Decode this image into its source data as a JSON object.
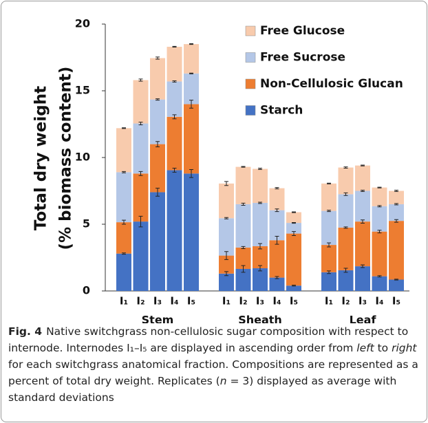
{
  "chart_data": {
    "type": "stacked-bar",
    "ylabel": [
      "Total dry weight",
      "(% biomass content)"
    ],
    "groups": [
      "Stem",
      "Sheath",
      "Leaf"
    ],
    "categories": [
      "I₁",
      "I₂",
      "I₃",
      "I₄",
      "I₅",
      "I₁",
      "I₂",
      "I₃",
      "I₄",
      "I₅",
      "I₁",
      "I₂",
      "I₃",
      "I₄",
      "I₅"
    ],
    "ylim": [
      0,
      20
    ],
    "yticks": [
      0,
      5,
      10,
      15,
      20
    ],
    "series": [
      {
        "name": "Starch",
        "color": "#4472c4",
        "values": [
          2.8,
          5.2,
          7.4,
          9.05,
          8.8,
          1.3,
          1.65,
          1.7,
          1.0,
          0.4,
          1.4,
          1.55,
          1.85,
          1.1,
          0.85
        ],
        "errors": [
          0.05,
          0.4,
          0.3,
          0.15,
          0.3,
          0.15,
          0.25,
          0.2,
          0.08,
          0.03,
          0.1,
          0.15,
          0.1,
          0.05,
          0.03
        ]
      },
      {
        "name": "Non-Cellulosic Glucan",
        "color": "#ed7d31",
        "values": [
          2.35,
          3.6,
          3.6,
          4.0,
          5.2,
          1.35,
          1.6,
          1.65,
          2.8,
          3.9,
          2.05,
          3.2,
          3.35,
          3.35,
          4.4
        ],
        "errors": [
          0.15,
          0.15,
          0.2,
          0.15,
          0.3,
          0.3,
          0.08,
          0.2,
          0.3,
          0.15,
          0.15,
          0.05,
          0.12,
          0.1,
          0.1
        ]
      },
      {
        "name": "Free Sucrose",
        "color": "#b4c7e7",
        "values": [
          3.75,
          3.75,
          3.35,
          2.65,
          2.3,
          2.8,
          3.25,
          3.25,
          2.25,
          0.8,
          2.55,
          2.5,
          2.3,
          1.9,
          1.25
        ],
        "errors": [
          0.05,
          0.1,
          0.05,
          0.05,
          0.03,
          0.05,
          0.08,
          0.05,
          0.1,
          0.03,
          0.05,
          0.1,
          0.05,
          0.05,
          0.05
        ]
      },
      {
        "name": "Free Glucose",
        "color": "#f8cbad",
        "values": [
          3.3,
          3.25,
          3.1,
          2.6,
          2.2,
          2.6,
          2.8,
          2.55,
          1.65,
          0.8,
          2.05,
          2.0,
          1.9,
          1.4,
          1.0
        ],
        "errors": [
          0.03,
          0.08,
          0.08,
          0.03,
          0.03,
          0.15,
          0.03,
          0.05,
          0.05,
          0.03,
          0.03,
          0.05,
          0.03,
          0.03,
          0.05
        ]
      }
    ]
  },
  "caption": {
    "label": "Fig. 4",
    "segments": [
      "Native switchgrass non-cellulosic sugar composition with respect to internode. Internodes I₁–I₅ are displayed in ascending order from ",
      "left",
      " to ",
      "right",
      " for each switchgrass anatomical fraction. Compositions are represented as a percent of total dry weight. Replicates (",
      "n",
      " = 3) displayed as average with standard deviations"
    ]
  }
}
